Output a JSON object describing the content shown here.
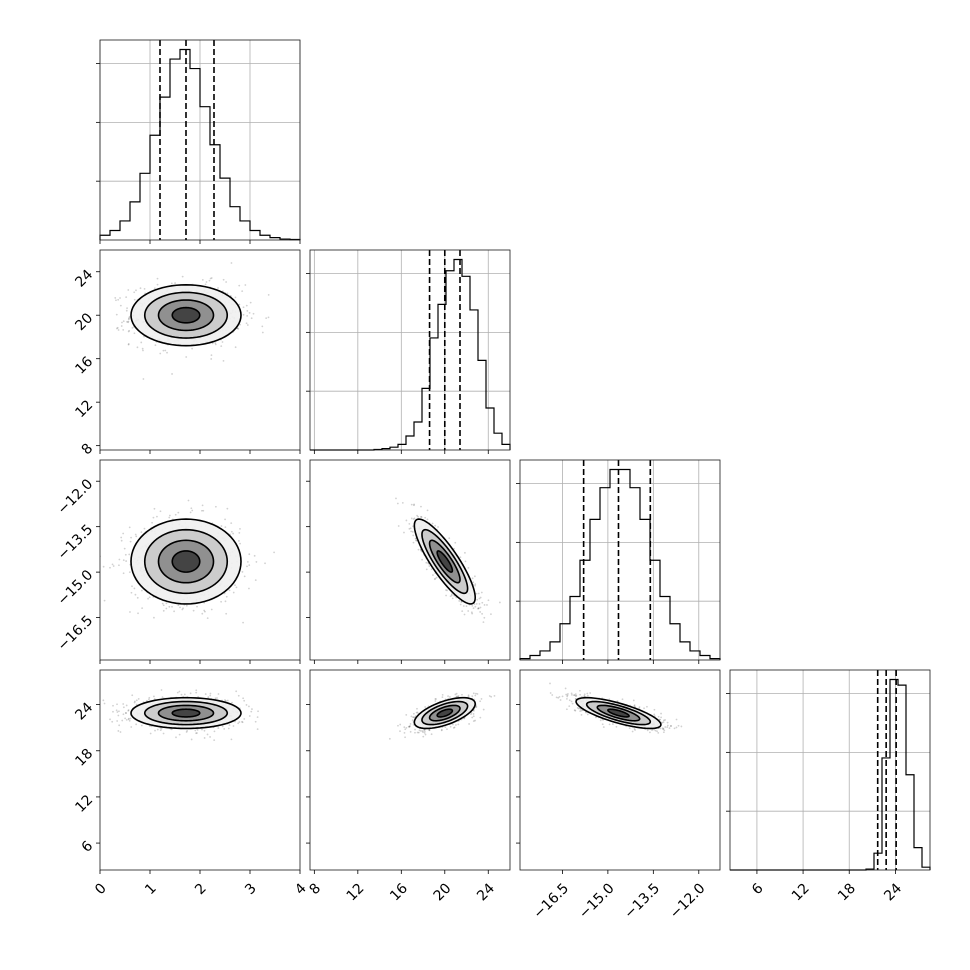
{
  "chart_data": {
    "type": "corner",
    "title": "",
    "parameters": [
      {
        "index": 0,
        "xlim": [
          0,
          4
        ],
        "ticks": [
          0,
          1,
          2,
          3,
          4
        ],
        "tick_labels": [
          "0",
          "1",
          "2",
          "3",
          "4"
        ]
      },
      {
        "index": 1,
        "xlim": [
          7.6,
          26
        ],
        "ticks": [
          8,
          12,
          16,
          20,
          24
        ],
        "tick_labels": [
          "8",
          "12",
          "16",
          "20",
          "24"
        ]
      },
      {
        "index": 2,
        "xlim": [
          -17.9,
          -11.3
        ],
        "ticks": [
          -16.5,
          -15.0,
          -13.5,
          -12.0
        ],
        "tick_labels": [
          "−16.5",
          "−15.0",
          "−13.5",
          "−12.0"
        ]
      },
      {
        "index": 3,
        "xlim": [
          2.5,
          28.5
        ],
        "ticks": [
          6,
          12,
          18,
          24
        ],
        "tick_labels": [
          "6",
          "12",
          "18",
          "24"
        ]
      }
    ],
    "diagonal_histograms": [
      {
        "param": 0,
        "bin_edges_range": [
          0,
          4
        ],
        "counts": [
          1,
          2,
          4,
          8,
          14,
          22,
          30,
          38,
          40,
          36,
          28,
          20,
          13,
          7,
          4,
          2,
          1,
          0.5,
          0.2,
          0.1
        ],
        "quantiles": [
          1.2,
          1.72,
          2.28
        ]
      },
      {
        "param": 1,
        "bin_edges_range": [
          7.6,
          26
        ],
        "counts": [
          0,
          0,
          0,
          0,
          0,
          0,
          0,
          0,
          0.2,
          0.5,
          1,
          2,
          5,
          10,
          22,
          40,
          52,
          64,
          68,
          62,
          50,
          32,
          15,
          6,
          2
        ],
        "quantiles": [
          18.6,
          20.0,
          21.4
        ]
      },
      {
        "param": 2,
        "bin_edges_range": [
          -17.9,
          -11.3
        ],
        "counts": [
          0.3,
          1,
          2,
          4,
          8,
          14,
          22,
          31,
          38,
          42,
          42,
          38,
          31,
          22,
          14,
          8,
          4,
          2,
          1,
          0.3
        ],
        "quantiles": [
          -15.8,
          -14.65,
          -13.6
        ]
      },
      {
        "param": 3,
        "bin_edges_range": [
          2.5,
          28.5
        ],
        "counts": [
          0,
          0,
          0,
          0,
          0,
          0,
          0,
          0,
          0,
          0,
          0,
          0,
          0,
          0,
          0,
          0,
          0,
          0.3,
          6,
          40,
          68,
          66,
          34,
          8,
          1
        ],
        "quantiles": [
          21.7,
          22.8,
          24.1
        ]
      }
    ],
    "pairs": [
      {
        "x_param": 0,
        "y_param": 1,
        "mean": [
          1.72,
          20.0
        ],
        "sd": [
          0.55,
          1.4
        ],
        "corr": 0
      },
      {
        "x_param": 0,
        "y_param": 2,
        "mean": [
          1.72,
          -14.65
        ],
        "sd": [
          0.55,
          0.7
        ],
        "corr": 0
      },
      {
        "x_param": 1,
        "y_param": 2,
        "mean": [
          20.0,
          -14.65
        ],
        "sd": [
          1.4,
          0.7
        ],
        "corr": -0.85
      },
      {
        "x_param": 0,
        "y_param": 3,
        "mean": [
          1.72,
          22.9
        ],
        "sd": [
          0.55,
          1.0
        ],
        "corr": 0
      },
      {
        "x_param": 1,
        "y_param": 3,
        "mean": [
          20.0,
          22.9
        ],
        "sd": [
          1.4,
          1.0
        ],
        "corr": 0.6
      },
      {
        "x_param": 2,
        "y_param": 3,
        "mean": [
          -14.65,
          22.9
        ],
        "sd": [
          0.7,
          1.0
        ],
        "corr": -0.75
      }
    ],
    "contour_levels_sigma": [
      0.5,
      1.0,
      1.5,
      2.0
    ],
    "grid": true,
    "legend": "none",
    "colors": {
      "line": "#000000",
      "density": "#000000",
      "grid": "#b0b0b0"
    }
  }
}
